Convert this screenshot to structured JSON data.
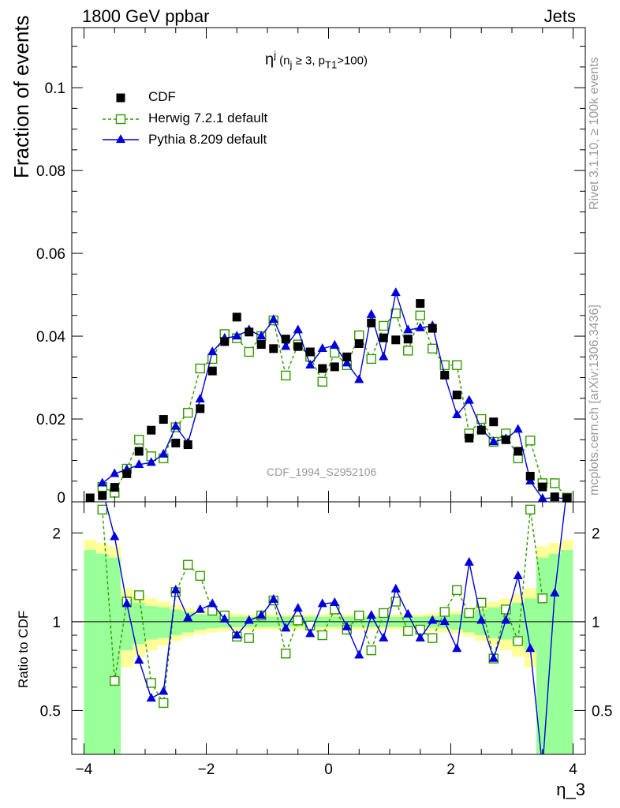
{
  "header": {
    "left": "1800 GeV ppbar",
    "right": "Jets",
    "rivet_label": "Rivet 3.1.10, ≥ 100k events",
    "mcplots_label": "mcplots.cern.ch [arXiv:1306.3436]",
    "watermark": "CDF_1994_S2952106"
  },
  "observable": {
    "symbol": "η",
    "sup": "j",
    "condition_open": " (n",
    "condition_sub1": "j",
    "condition_mid": " ≥ 3, p",
    "condition_sub2": "T1",
    "condition_close": ">100)"
  },
  "colors": {
    "data": "#000000",
    "herwig": "#339900",
    "pythia": "#0000dd",
    "band_inner": "#99ff99",
    "band_outer": "#ffff99"
  },
  "chart_data": {
    "type": "line",
    "x_label": "η_3",
    "top_panel": {
      "ylabel": "Fraction of events",
      "xlim": [
        -4.2,
        4.2
      ],
      "ylim": [
        0,
        0.1145
      ],
      "yticks": [
        0,
        0.02,
        0.04,
        0.06,
        0.08,
        0.1
      ],
      "ytick_labels": [
        "0",
        "0.02",
        "0.04",
        "0.06",
        "0.08",
        "0.1"
      ]
    },
    "ratio_panel": {
      "ylabel": "Ratio to CDF",
      "log_scale": true,
      "ylim": [
        0.355,
        2.55
      ],
      "yticks": [
        0.5,
        1,
        2
      ],
      "ytick_labels": [
        "0.5",
        "1",
        "2"
      ],
      "left_tick_labels": [
        "0.5",
        "1",
        "2"
      ],
      "right_tick_labels": [
        "0.5",
        "1",
        "2"
      ],
      "reference": 1
    },
    "xticks": [
      -4,
      -2,
      0,
      2,
      4
    ],
    "xtick_labels": [
      "−4",
      "−2",
      "0",
      "2",
      "4"
    ],
    "legend": [
      {
        "name": "CDF",
        "marker": "square-filled"
      },
      {
        "name": "Herwig 7.2.1 default",
        "marker": "square-open",
        "style": "dashed"
      },
      {
        "name": "Pythia 8.209 default",
        "marker": "triangle-filled",
        "style": "solid"
      }
    ],
    "x": [
      -3.9,
      -3.7,
      -3.5,
      -3.3,
      -3.1,
      -2.9,
      -2.7,
      -2.5,
      -2.3,
      -2.1,
      -1.9,
      -1.7,
      -1.5,
      -1.3,
      -1.1,
      -0.9,
      -0.7,
      -0.5,
      -0.3,
      -0.1,
      0.1,
      0.3,
      0.5,
      0.7,
      0.9,
      1.1,
      1.3,
      1.5,
      1.7,
      1.9,
      2.1,
      2.3,
      2.5,
      2.7,
      2.9,
      3.1,
      3.3,
      3.5,
      3.7,
      3.9
    ],
    "series": [
      {
        "name": "CDF",
        "values": [
          0.0003,
          0.0015,
          0.0035,
          0.0068,
          0.0122,
          0.0173,
          0.0199,
          0.0142,
          0.0138,
          0.0225,
          0.0316,
          0.0387,
          0.0446,
          0.041,
          0.038,
          0.037,
          0.0393,
          0.0375,
          0.0362,
          0.0322,
          0.0326,
          0.035,
          0.0382,
          0.0432,
          0.0396,
          0.0391,
          0.0393,
          0.0479,
          0.0419,
          0.0306,
          0.0258,
          0.0154,
          0.0173,
          0.0193,
          0.015,
          0.0122,
          0.0062,
          0.0036,
          0.0012,
          0.0002
        ]
      },
      {
        "name": "Herwig 7.2.1 default",
        "values": [
          null,
          0.0036,
          0.0022,
          0.008,
          0.015,
          0.011,
          0.0105,
          0.018,
          0.0215,
          0.0322,
          0.0345,
          0.0405,
          0.0395,
          0.0362,
          0.04,
          0.0438,
          0.0305,
          0.038,
          0.035,
          0.029,
          0.036,
          0.033,
          0.0402,
          0.0345,
          0.0425,
          0.0455,
          0.0365,
          0.045,
          0.037,
          0.033,
          0.033,
          0.0165,
          0.02,
          0.0145,
          0.0165,
          0.0105,
          0.0148,
          0.0045,
          0.0045,
          0.001
        ]
      },
      {
        "name": "Pythia 8.209 default",
        "values": [
          null,
          0.0045,
          0.0068,
          0.0078,
          0.009,
          0.0095,
          0.0115,
          0.0182,
          0.0142,
          0.0248,
          0.0362,
          0.0395,
          0.04,
          0.0415,
          0.04,
          0.044,
          0.0375,
          0.0415,
          0.033,
          0.037,
          0.0378,
          0.0335,
          0.0295,
          0.0452,
          0.035,
          0.0505,
          0.0415,
          0.042,
          0.0425,
          0.0305,
          0.021,
          0.0245,
          0.0175,
          0.0145,
          0.0152,
          0.0175,
          0.005,
          0.0008,
          0.001,
          0.0008
        ]
      }
    ],
    "ratio_series": [
      {
        "name": "Herwig 7.2.1 default",
        "values": [
          null,
          2.4,
          0.63,
          1.17,
          1.23,
          0.62,
          0.53,
          1.26,
          1.56,
          1.43,
          1.09,
          1.05,
          0.89,
          0.88,
          1.05,
          1.18,
          0.78,
          1.01,
          0.97,
          0.9,
          1.1,
          0.94,
          1.05,
          0.8,
          1.07,
          1.17,
          0.93,
          0.94,
          0.88,
          1.08,
          1.28,
          1.07,
          1.16,
          0.75,
          1.1,
          0.86,
          2.4,
          1.2,
          null,
          null
        ]
      },
      {
        "name": "Pythia 8.209 default",
        "values": [
          null,
          2.95,
          1.94,
          1.15,
          0.74,
          0.55,
          0.58,
          1.28,
          1.03,
          1.1,
          1.15,
          1.02,
          0.9,
          1.01,
          1.05,
          1.19,
          0.95,
          1.11,
          0.91,
          1.15,
          1.16,
          0.96,
          0.77,
          1.05,
          0.88,
          1.29,
          1.06,
          0.88,
          1.01,
          1.0,
          0.81,
          1.59,
          1.01,
          0.75,
          1.01,
          1.43,
          0.81,
          0.22,
          1.25,
          4.0
        ]
      }
    ],
    "ratio_band": {
      "inner_halfwidth": [
        0.75,
        0.7,
        0.65,
        0.2,
        0.16,
        0.13,
        0.12,
        0.1,
        0.08,
        0.06,
        0.05,
        0.045,
        0.04,
        0.04,
        0.04,
        0.04,
        0.04,
        0.04,
        0.04,
        0.04,
        0.04,
        0.04,
        0.04,
        0.04,
        0.04,
        0.04,
        0.04,
        0.04,
        0.045,
        0.05,
        0.06,
        0.08,
        0.1,
        0.12,
        0.13,
        0.16,
        0.2,
        0.65,
        0.7,
        0.75
      ],
      "outer_halfwidth": [
        0.9,
        0.85,
        0.8,
        0.3,
        0.24,
        0.2,
        0.17,
        0.14,
        0.11,
        0.09,
        0.08,
        0.07,
        0.065,
        0.06,
        0.06,
        0.06,
        0.06,
        0.06,
        0.06,
        0.06,
        0.06,
        0.06,
        0.06,
        0.06,
        0.06,
        0.06,
        0.06,
        0.06,
        0.07,
        0.08,
        0.09,
        0.11,
        0.14,
        0.17,
        0.2,
        0.24,
        0.3,
        0.8,
        0.85,
        0.9
      ]
    }
  }
}
